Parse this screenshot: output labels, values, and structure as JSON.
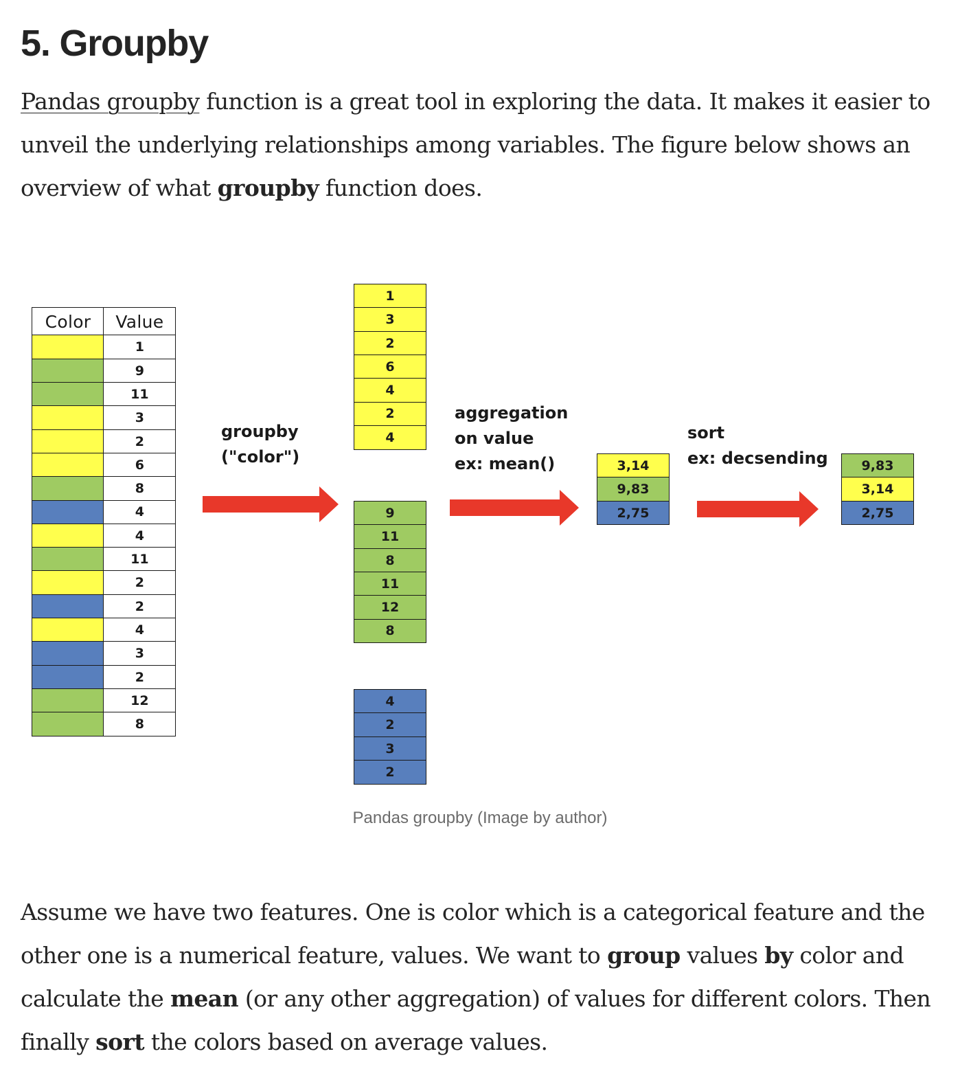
{
  "heading": "5. Groupby",
  "intro": {
    "link_text": "Pandas groupby",
    "text1": " function is a great tool in exploring the data. It makes it easier to unveil the underlying relationships among variables. The figure below shows an overview of what ",
    "bold1": "groupby",
    "text2": " function does."
  },
  "figure": {
    "colors": {
      "yellow": "#ffff4d",
      "green": "#9fcb62",
      "blue": "#587fbd",
      "arrow": "#e8382a"
    },
    "table": {
      "headers": [
        "Color",
        "Value"
      ],
      "rows": [
        {
          "color": "yellow",
          "value": "1"
        },
        {
          "color": "green",
          "value": "9"
        },
        {
          "color": "green",
          "value": "11"
        },
        {
          "color": "yellow",
          "value": "3"
        },
        {
          "color": "yellow",
          "value": "2"
        },
        {
          "color": "yellow",
          "value": "6"
        },
        {
          "color": "green",
          "value": "8"
        },
        {
          "color": "blue",
          "value": "4"
        },
        {
          "color": "yellow",
          "value": "4"
        },
        {
          "color": "green",
          "value": "11"
        },
        {
          "color": "yellow",
          "value": "2"
        },
        {
          "color": "blue",
          "value": "2"
        },
        {
          "color": "yellow",
          "value": "4"
        },
        {
          "color": "blue",
          "value": "3"
        },
        {
          "color": "blue",
          "value": "2"
        },
        {
          "color": "green",
          "value": "12"
        },
        {
          "color": "green",
          "value": "8"
        }
      ]
    },
    "groupby_label": "groupby\n(\"color\")",
    "groups": [
      {
        "color": "yellow",
        "values": [
          "1",
          "3",
          "2",
          "6",
          "4",
          "2",
          "4"
        ]
      },
      {
        "color": "green",
        "values": [
          "9",
          "11",
          "8",
          "11",
          "12",
          "8"
        ]
      },
      {
        "color": "blue",
        "values": [
          "4",
          "2",
          "3",
          "2"
        ]
      }
    ],
    "aggregation_label": "aggregation\non value\nex: mean()",
    "means": [
      {
        "color": "yellow",
        "value": "3,14"
      },
      {
        "color": "green",
        "value": "9,83"
      },
      {
        "color": "blue",
        "value": "2,75"
      }
    ],
    "sort_label": "sort\nex: decsending",
    "sorted": [
      {
        "color": "green",
        "value": "9,83"
      },
      {
        "color": "yellow",
        "value": "3,14"
      },
      {
        "color": "blue",
        "value": "2,75"
      }
    ],
    "caption": "Pandas groupby (Image by author)"
  },
  "outro": {
    "t1": "Assume we have two features. One is color which is a categorical feature and the other one is a numerical feature, values. We want to ",
    "b1": "group",
    "t2": " values ",
    "b2": "by",
    "t3": " color and calculate the ",
    "b3": "mean",
    "t4": " (or any other aggregation) of values for different colors. Then finally ",
    "b4": "sort",
    "t5": " the colors based on average values."
  }
}
